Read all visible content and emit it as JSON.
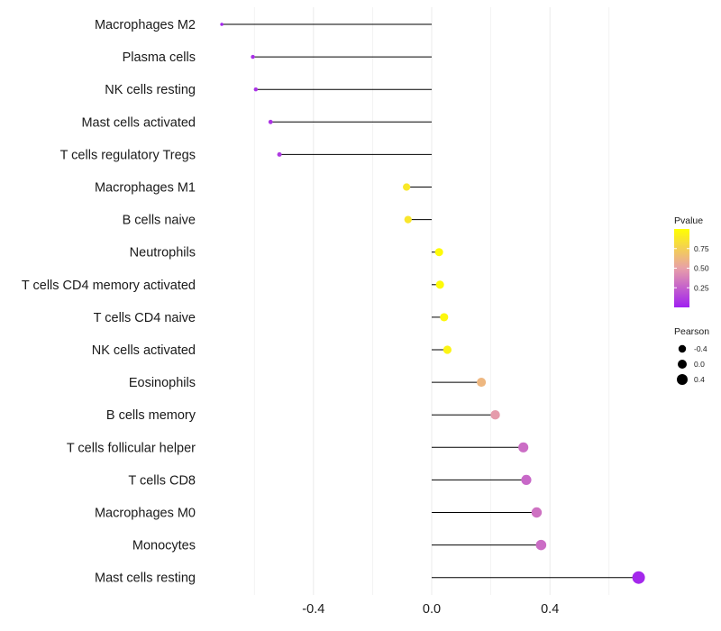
{
  "chart_data": {
    "type": "lollipop",
    "categories": [
      "Macrophages M2",
      "Plasma cells",
      "NK cells resting",
      "Mast cells activated",
      "T cells regulatory  Tregs",
      "Macrophages M1",
      "B cells naive",
      "Neutrophils",
      "T cells CD4 memory activated",
      "T cells CD4 naive",
      "NK cells activated",
      "Eosinophils",
      "B cells memory",
      "T cells follicular helper",
      "T cells CD8",
      "Macrophages M0",
      "Monocytes",
      "Mast cells resting"
    ],
    "values": [
      -0.71,
      -0.605,
      -0.595,
      -0.545,
      -0.515,
      -0.085,
      -0.08,
      0.025,
      0.028,
      0.042,
      0.053,
      0.168,
      0.215,
      0.31,
      0.32,
      0.355,
      0.37,
      0.7
    ],
    "pvalues": [
      0.02,
      0.06,
      0.07,
      0.08,
      0.1,
      0.88,
      0.87,
      0.98,
      0.98,
      0.96,
      0.94,
      0.62,
      0.48,
      0.3,
      0.28,
      0.32,
      0.3,
      0.03
    ],
    "x_ticks": [
      -0.4,
      0.0,
      0.4
    ],
    "x_tick_labels": [
      "-0.4",
      "0.0",
      "0.4"
    ],
    "xlim": [
      -0.78,
      0.78
    ],
    "colorbar": {
      "title": "Pvalue",
      "ticks": [
        0.75,
        0.5,
        0.25
      ],
      "tick_labels": [
        "0.75",
        "0.50",
        "0.25"
      ],
      "range": [
        0.0,
        1.0
      ],
      "color_low": "#a020f0",
      "color_mid": "#e8a0a8",
      "color_high": "#ffff00"
    },
    "size_legend": {
      "title": "Pearson",
      "entries": [
        -0.4,
        0.0,
        0.4
      ],
      "entry_labels": [
        "-0.4",
        "0.0",
        "0.4"
      ]
    },
    "segment_color": "#000000",
    "grid": true,
    "grid_color": "#ebebeb"
  }
}
